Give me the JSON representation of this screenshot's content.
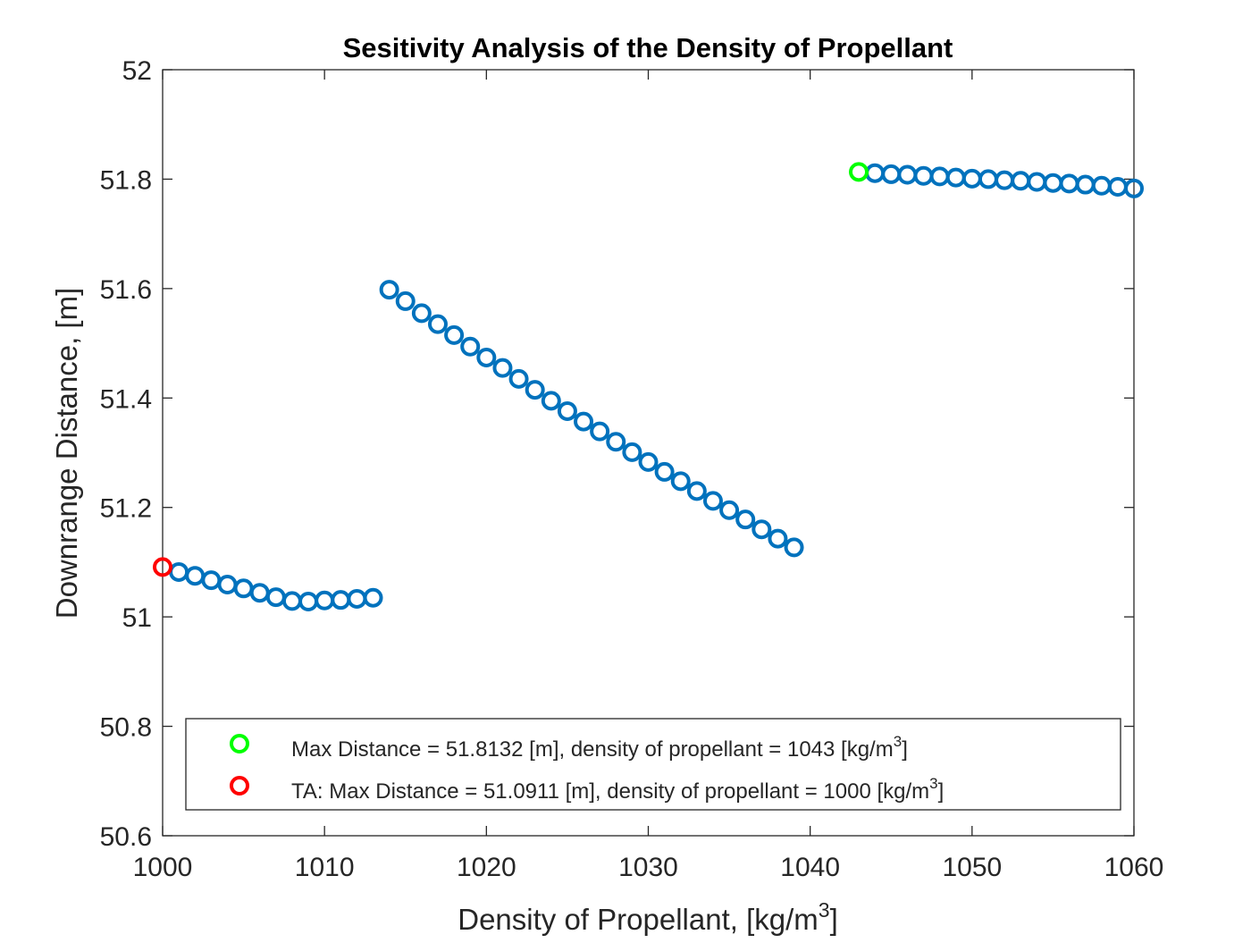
{
  "chart_data": {
    "type": "scatter",
    "title": "Sesitivity Analysis of the Density of Propellant",
    "xlabel_main": "Density of Propellant, [kg/m",
    "xlabel_sup": "3",
    "xlabel_end": "]",
    "ylabel": "Downrange Distance, [m]",
    "xlim": [
      1000,
      1060
    ],
    "ylim": [
      50.6,
      52
    ],
    "x_ticks": [
      1000,
      1010,
      1020,
      1030,
      1040,
      1050,
      1060
    ],
    "y_ticks": [
      50.6,
      50.8,
      51,
      51.2,
      51.4,
      51.6,
      51.8,
      52
    ],
    "y_tick_labels": [
      "50.6",
      "50.8",
      "51",
      "51.2",
      "51.4",
      "51.6",
      "51.8",
      "52"
    ],
    "grid": false,
    "legend_placement": "bottom",
    "series": [
      {
        "color": "#0072BD",
        "x": [
          1001,
          1002,
          1003,
          1004,
          1005,
          1006,
          1007,
          1008,
          1009,
          1010,
          1011,
          1012,
          1013,
          1014,
          1015,
          1016,
          1017,
          1018,
          1019,
          1020,
          1021,
          1022,
          1023,
          1024,
          1025,
          1026,
          1027,
          1028,
          1029,
          1030,
          1031,
          1032,
          1033,
          1034,
          1035,
          1036,
          1037,
          1038,
          1039,
          1044,
          1045,
          1046,
          1047,
          1048,
          1049,
          1050,
          1051,
          1052,
          1053,
          1054,
          1055,
          1056,
          1057,
          1058,
          1059,
          1060
        ],
        "y": [
          51.082,
          51.075,
          51.067,
          51.059,
          51.052,
          51.044,
          51.036,
          51.029,
          51.028,
          51.03,
          51.031,
          51.033,
          51.035,
          51.598,
          51.577,
          51.555,
          51.535,
          51.515,
          51.494,
          51.474,
          51.455,
          51.435,
          51.415,
          51.395,
          51.376,
          51.357,
          51.339,
          51.32,
          51.301,
          51.283,
          51.265,
          51.248,
          51.23,
          51.212,
          51.195,
          51.178,
          51.16,
          51.143,
          51.127,
          51.811,
          51.809,
          51.808,
          51.806,
          51.805,
          51.803,
          51.801,
          51.8,
          51.798,
          51.797,
          51.795,
          51.793,
          51.792,
          51.79,
          51.788,
          51.786,
          51.783
        ]
      },
      {
        "name": "Max Distance = 51.8132 [m], density of propellant = 1043 [kg/m",
        "name_sup": "3",
        "name_end": "]",
        "color": "#00FF00",
        "x": [
          1043
        ],
        "y": [
          51.8132
        ]
      },
      {
        "name": "TA: Max Distance = 51.0911 [m], density of propellant = 1000 [kg/m",
        "name_sup": "3",
        "name_end": "]",
        "color": "#FF0000",
        "x": [
          1000
        ],
        "y": [
          51.0911
        ]
      }
    ]
  }
}
